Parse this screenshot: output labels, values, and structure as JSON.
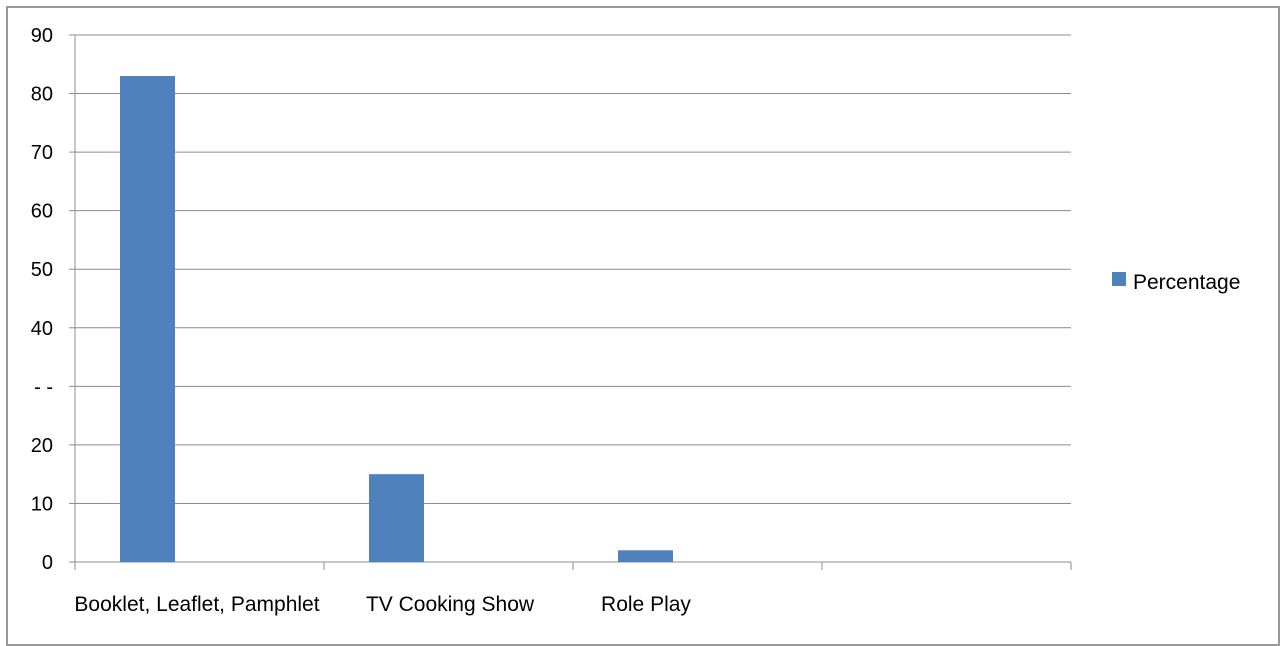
{
  "chart_data": {
    "type": "bar",
    "categories": [
      "Booklet, Leaflet, Pamphlet",
      "TV Cooking Show",
      "Role Play",
      ""
    ],
    "series": [
      {
        "name": "Percentage",
        "values": [
          83,
          15,
          2,
          0
        ]
      }
    ],
    "yticks": [
      "0",
      "10",
      "20",
      "- -",
      "40",
      "50",
      "60",
      "70",
      "80",
      "90"
    ],
    "ylim": [
      0,
      90
    ],
    "grid": true,
    "legend_position": "right",
    "colors": {
      "bar": "#4F81BD",
      "grid": "#8c8c8c",
      "axis": "#8c8c8c"
    }
  }
}
